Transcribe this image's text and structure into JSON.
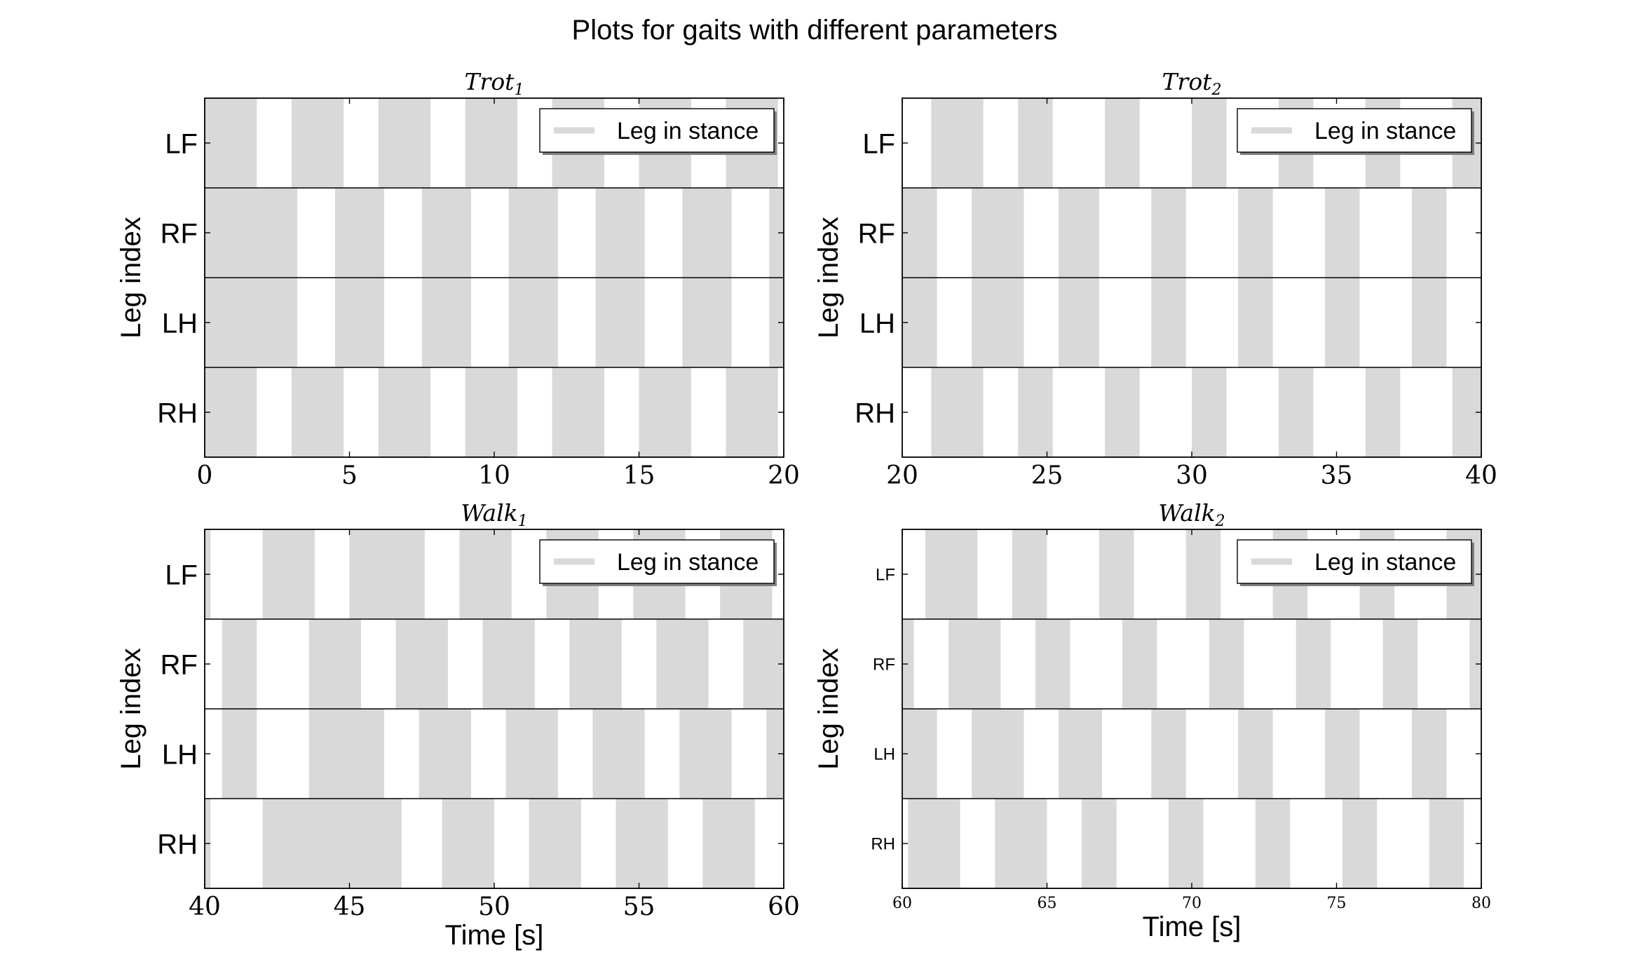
{
  "suptitle": "Plots for gaits with different parameters",
  "colors": {
    "stance": "#d9d9d9",
    "axis": "#000000",
    "background": "#ffffff"
  },
  "chart_data": [
    {
      "type": "gantt",
      "title": "Trot",
      "title_subscript": "1",
      "xlabel": "",
      "ylabel": "Leg index",
      "xlim": [
        0,
        20
      ],
      "xticks": [
        0,
        5,
        10,
        15,
        20
      ],
      "legend": {
        "label": "Leg in stance",
        "placement": "top-right"
      },
      "leg_label_size": "large",
      "tick_size": "large",
      "legs": [
        {
          "name": "LF",
          "stance": [
            [
              0,
              1.8
            ],
            [
              3.0,
              4.8
            ],
            [
              6.0,
              7.8
            ],
            [
              9.0,
              10.8
            ],
            [
              12.0,
              13.8
            ],
            [
              15.0,
              16.8
            ],
            [
              18.0,
              19.8
            ]
          ]
        },
        {
          "name": "RF",
          "stance": [
            [
              0,
              3.2
            ],
            [
              4.5,
              6.2
            ],
            [
              7.5,
              9.2
            ],
            [
              10.5,
              12.2
            ],
            [
              13.5,
              15.2
            ],
            [
              16.5,
              18.2
            ],
            [
              19.5,
              20
            ]
          ]
        },
        {
          "name": "LH",
          "stance": [
            [
              0,
              3.2
            ],
            [
              4.5,
              6.2
            ],
            [
              7.5,
              9.2
            ],
            [
              10.5,
              12.2
            ],
            [
              13.5,
              15.2
            ],
            [
              16.5,
              18.2
            ],
            [
              19.5,
              20
            ]
          ]
        },
        {
          "name": "RH",
          "stance": [
            [
              0,
              1.8
            ],
            [
              3.0,
              4.8
            ],
            [
              6.0,
              7.8
            ],
            [
              9.0,
              10.8
            ],
            [
              12.0,
              13.8
            ],
            [
              15.0,
              16.8
            ],
            [
              18.0,
              19.8
            ]
          ]
        }
      ]
    },
    {
      "type": "gantt",
      "title": "Trot",
      "title_subscript": "2",
      "xlabel": "",
      "ylabel": "Leg index",
      "xlim": [
        20,
        40
      ],
      "xticks": [
        20,
        25,
        30,
        35,
        40
      ],
      "legend": {
        "label": "Leg in stance",
        "placement": "top-right"
      },
      "leg_label_size": "large",
      "tick_size": "large",
      "legs": [
        {
          "name": "LF",
          "stance": [
            [
              21.0,
              22.8
            ],
            [
              24.0,
              25.2
            ],
            [
              27.0,
              28.2
            ],
            [
              30.0,
              31.2
            ],
            [
              33.0,
              34.2
            ],
            [
              36.0,
              37.2
            ],
            [
              39.0,
              40.0
            ]
          ]
        },
        {
          "name": "RF",
          "stance": [
            [
              20.0,
              21.2
            ],
            [
              22.4,
              24.2
            ],
            [
              25.4,
              26.8
            ],
            [
              28.6,
              29.8
            ],
            [
              31.6,
              32.8
            ],
            [
              34.6,
              35.8
            ],
            [
              37.6,
              38.8
            ]
          ]
        },
        {
          "name": "LH",
          "stance": [
            [
              20.0,
              21.2
            ],
            [
              22.4,
              24.2
            ],
            [
              25.4,
              26.8
            ],
            [
              28.6,
              29.8
            ],
            [
              31.6,
              32.8
            ],
            [
              34.6,
              35.8
            ],
            [
              37.6,
              38.8
            ]
          ]
        },
        {
          "name": "RH",
          "stance": [
            [
              21.0,
              22.8
            ],
            [
              24.0,
              25.2
            ],
            [
              27.0,
              28.2
            ],
            [
              30.0,
              31.2
            ],
            [
              33.0,
              34.2
            ],
            [
              36.0,
              37.2
            ],
            [
              39.0,
              40.0
            ]
          ]
        }
      ]
    },
    {
      "type": "gantt",
      "title": "Walk",
      "title_subscript": "1",
      "xlabel": "Time [s]",
      "ylabel": "Leg index",
      "xlim": [
        40,
        60
      ],
      "xticks": [
        40,
        45,
        50,
        55,
        60
      ],
      "legend": {
        "label": "Leg in stance",
        "placement": "top-right"
      },
      "leg_label_size": "large",
      "tick_size": "large",
      "legs": [
        {
          "name": "LF",
          "stance": [
            [
              40.0,
              40.2
            ],
            [
              42.0,
              43.8
            ],
            [
              45.0,
              47.6
            ],
            [
              48.8,
              50.6
            ],
            [
              51.8,
              53.6
            ],
            [
              54.8,
              56.6
            ],
            [
              57.8,
              59.6
            ]
          ]
        },
        {
          "name": "RF",
          "stance": [
            [
              40.6,
              41.8
            ],
            [
              43.6,
              45.4
            ],
            [
              46.6,
              48.4
            ],
            [
              49.6,
              51.4
            ],
            [
              52.6,
              54.4
            ],
            [
              55.6,
              57.4
            ],
            [
              58.6,
              60.0
            ]
          ]
        },
        {
          "name": "LH",
          "stance": [
            [
              40.6,
              41.8
            ],
            [
              43.6,
              46.2
            ],
            [
              47.4,
              49.2
            ],
            [
              50.4,
              52.2
            ],
            [
              53.4,
              55.2
            ],
            [
              56.4,
              58.2
            ],
            [
              59.4,
              60.0
            ]
          ]
        },
        {
          "name": "RH",
          "stance": [
            [
              40.0,
              40.2
            ],
            [
              42.0,
              46.8
            ],
            [
              48.2,
              50.0
            ],
            [
              51.2,
              53.0
            ],
            [
              54.2,
              56.0
            ],
            [
              57.2,
              59.0
            ]
          ]
        }
      ]
    },
    {
      "type": "gantt",
      "title": "Walk",
      "title_subscript": "2",
      "xlabel": "Time [s]",
      "ylabel": "Leg index",
      "xlim": [
        60,
        80
      ],
      "xticks": [
        60,
        65,
        70,
        75,
        80
      ],
      "legend": {
        "label": "Leg in stance",
        "placement": "top-right"
      },
      "leg_label_size": "small",
      "tick_size": "small",
      "legs": [
        {
          "name": "LF",
          "stance": [
            [
              60.8,
              62.6
            ],
            [
              63.8,
              65.0
            ],
            [
              66.8,
              68.0
            ],
            [
              69.8,
              71.0
            ],
            [
              72.8,
              74.0
            ],
            [
              75.8,
              77.0
            ],
            [
              78.8,
              80.0
            ]
          ]
        },
        {
          "name": "RF",
          "stance": [
            [
              60.0,
              60.4
            ],
            [
              61.6,
              63.4
            ],
            [
              64.6,
              65.8
            ],
            [
              67.6,
              68.8
            ],
            [
              70.6,
              71.8
            ],
            [
              73.6,
              74.8
            ],
            [
              76.6,
              77.8
            ],
            [
              79.6,
              80.0
            ]
          ]
        },
        {
          "name": "LH",
          "stance": [
            [
              60.0,
              61.2
            ],
            [
              62.4,
              64.2
            ],
            [
              65.4,
              66.9
            ],
            [
              68.6,
              69.8
            ],
            [
              71.6,
              72.8
            ],
            [
              74.6,
              75.8
            ],
            [
              77.6,
              78.8
            ]
          ]
        },
        {
          "name": "RH",
          "stance": [
            [
              60.2,
              62.0
            ],
            [
              63.2,
              65.0
            ],
            [
              66.2,
              67.4
            ],
            [
              69.2,
              70.4
            ],
            [
              72.2,
              73.4
            ],
            [
              75.2,
              76.4
            ],
            [
              78.2,
              79.4
            ]
          ]
        }
      ]
    }
  ]
}
